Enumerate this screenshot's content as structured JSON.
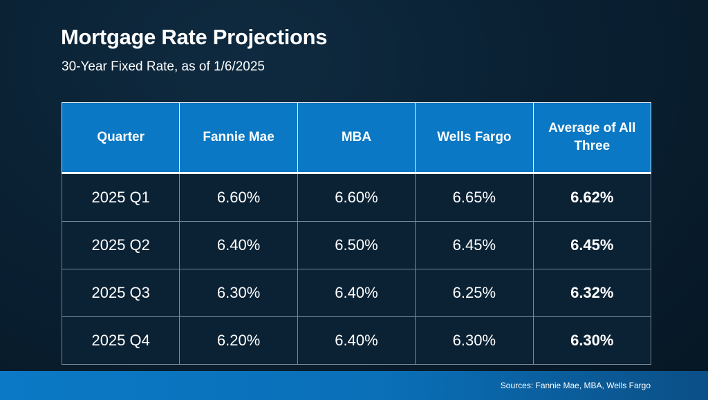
{
  "title": "Mortgage Rate Projections",
  "subtitle": "30-Year Fixed Rate, as of 1/6/2025",
  "footer": {
    "sources": "Sources: Fannie Mae, MBA, Wells Fargo"
  },
  "colors": {
    "background": "#0a2133",
    "header_fill": "#0a78c4",
    "cell_fill": "#0b2235",
    "footer_bar": "#0a6fb7"
  },
  "chart_data": {
    "type": "table",
    "title": "Mortgage Rate Projections",
    "subtitle": "30-Year Fixed Rate, as of 1/6/2025",
    "columns": [
      "Quarter",
      "Fannie Mae",
      "MBA",
      "Wells Fargo",
      "Average of All Three"
    ],
    "rows": [
      [
        "2025 Q1",
        "6.60%",
        "6.60%",
        "6.65%",
        "6.62%"
      ],
      [
        "2025 Q2",
        "6.40%",
        "6.50%",
        "6.45%",
        "6.45%"
      ],
      [
        "2025 Q3",
        "6.30%",
        "6.40%",
        "6.25%",
        "6.32%"
      ],
      [
        "2025 Q4",
        "6.20%",
        "6.40%",
        "6.30%",
        "6.30%"
      ]
    ]
  }
}
